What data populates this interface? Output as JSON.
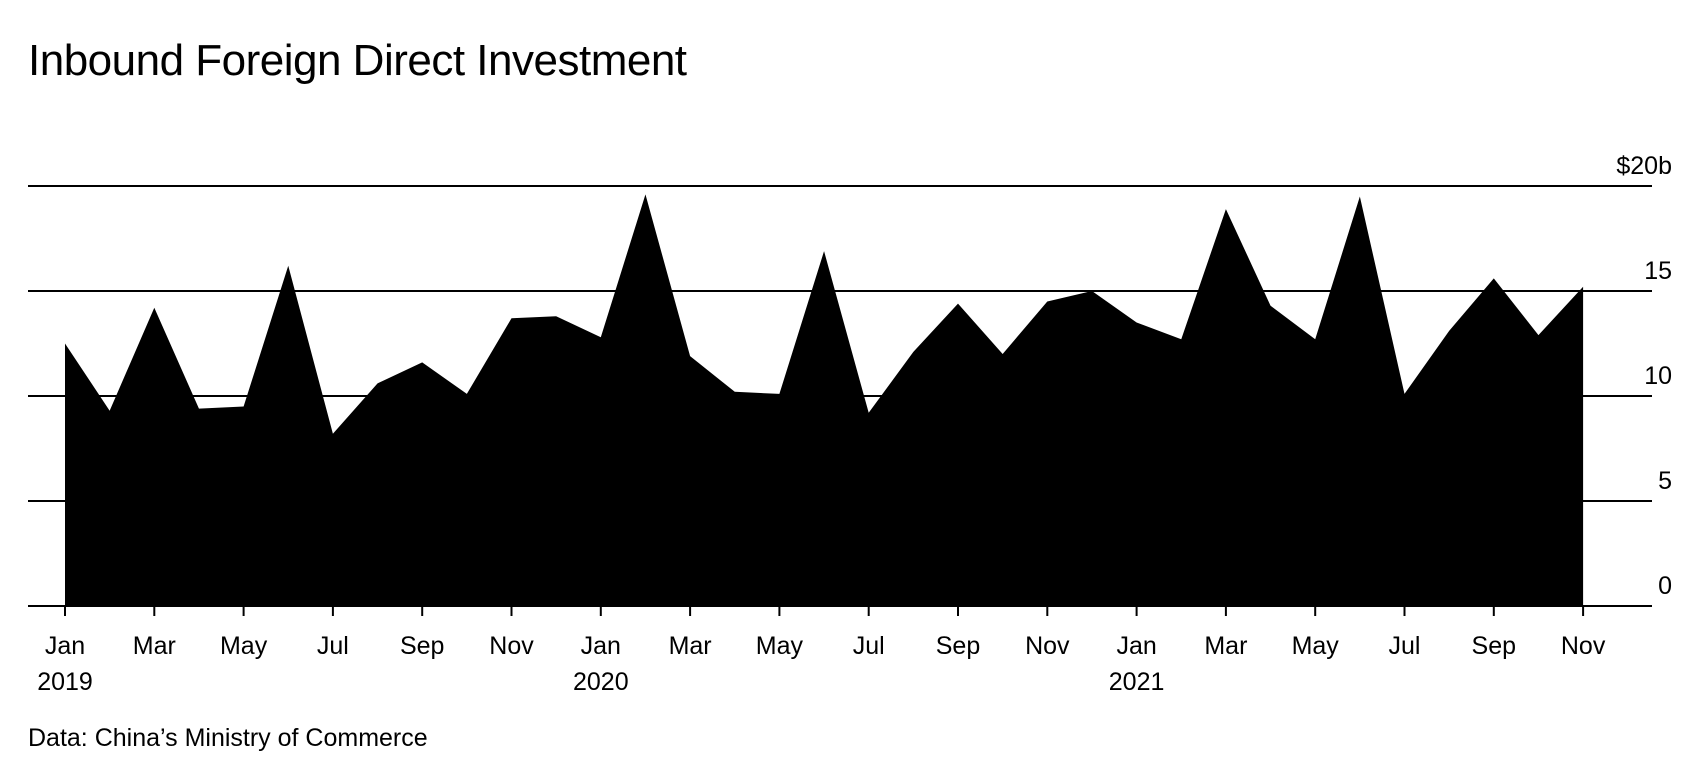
{
  "title": "Inbound Foreign Direct Investment",
  "source": "Data: China’s Ministry of Commerce",
  "colors": {
    "area": "#000000",
    "grid": "#000000",
    "background": "#ffffff"
  },
  "chart_data": {
    "type": "area",
    "title": "Inbound Foreign Direct Investment",
    "xlabel": "",
    "ylabel": "",
    "grid": true,
    "y_axis_side": "right",
    "ylim": [
      0,
      20
    ],
    "y_ticks": [
      0,
      5,
      10,
      15,
      20
    ],
    "y_tick_labels": [
      "0",
      "5",
      "10",
      "15",
      "$20b"
    ],
    "x": [
      "2019-01",
      "2019-02",
      "2019-03",
      "2019-04",
      "2019-05",
      "2019-06",
      "2019-07",
      "2019-08",
      "2019-09",
      "2019-10",
      "2019-11",
      "2019-12",
      "2020-01",
      "2020-02",
      "2020-03",
      "2020-04",
      "2020-05",
      "2020-06",
      "2020-07",
      "2020-08",
      "2020-09",
      "2020-10",
      "2020-11",
      "2020-12",
      "2021-01",
      "2021-02",
      "2021-03",
      "2021-04",
      "2021-05",
      "2021-06",
      "2021-07",
      "2021-08",
      "2021-09",
      "2021-10",
      "2021-11"
    ],
    "x_tick_labels": [
      {
        "month": "Jan",
        "year": "2019",
        "x": "2019-01"
      },
      {
        "month": "Mar",
        "year": "",
        "x": "2019-03"
      },
      {
        "month": "May",
        "year": "",
        "x": "2019-05"
      },
      {
        "month": "Jul",
        "year": "",
        "x": "2019-07"
      },
      {
        "month": "Sep",
        "year": "",
        "x": "2019-09"
      },
      {
        "month": "Nov",
        "year": "",
        "x": "2019-11"
      },
      {
        "month": "Jan",
        "year": "2020",
        "x": "2020-01"
      },
      {
        "month": "Mar",
        "year": "",
        "x": "2020-03"
      },
      {
        "month": "May",
        "year": "",
        "x": "2020-05"
      },
      {
        "month": "Jul",
        "year": "",
        "x": "2020-07"
      },
      {
        "month": "Sep",
        "year": "",
        "x": "2020-09"
      },
      {
        "month": "Nov",
        "year": "",
        "x": "2020-11"
      },
      {
        "month": "Jan",
        "year": "2021",
        "x": "2021-01"
      },
      {
        "month": "Mar",
        "year": "",
        "x": "2021-03"
      },
      {
        "month": "May",
        "year": "",
        "x": "2021-05"
      },
      {
        "month": "Jul",
        "year": "",
        "x": "2021-07"
      },
      {
        "month": "Sep",
        "year": "",
        "x": "2021-09"
      },
      {
        "month": "Nov",
        "year": "",
        "x": "2021-11"
      }
    ],
    "series": [
      {
        "values": [
          12.5,
          9.3,
          14.2,
          9.4,
          9.5,
          16.2,
          8.2,
          10.6,
          11.6,
          10.1,
          13.7,
          13.8,
          12.8,
          19.6,
          11.9,
          10.2,
          10.1,
          16.9,
          9.2,
          12.1,
          14.4,
          12.0,
          14.5,
          15.0,
          13.5,
          12.7,
          18.9,
          14.3,
          12.7,
          19.5,
          10.1,
          13.1,
          15.6,
          12.9,
          15.2
        ]
      }
    ]
  }
}
